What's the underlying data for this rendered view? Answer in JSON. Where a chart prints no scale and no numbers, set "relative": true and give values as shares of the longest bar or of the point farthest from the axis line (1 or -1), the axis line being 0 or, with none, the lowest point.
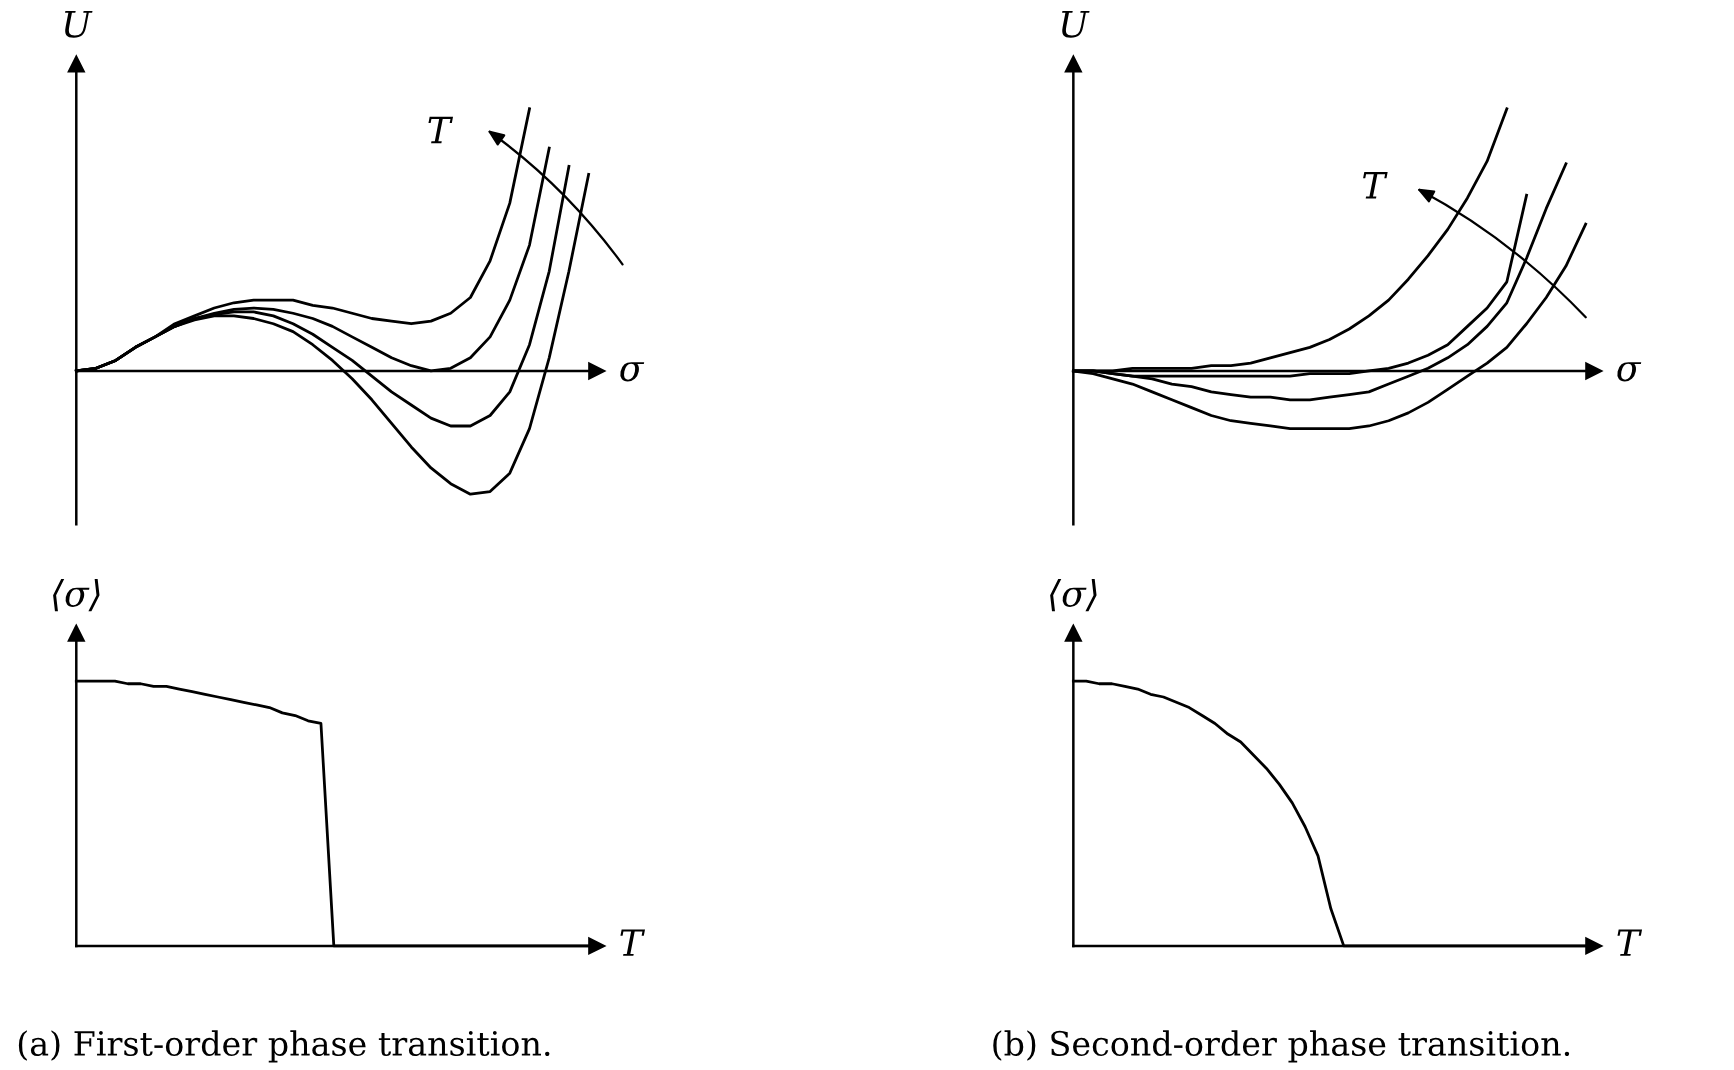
{
  "chart_data": [
    {
      "type": "line",
      "relative": true,
      "xlabel": "σ",
      "ylabel": "U",
      "annotations": [
        "T"
      ],
      "categories": [
        null,
        null,
        null,
        null,
        null,
        null,
        null,
        null,
        null,
        null,
        null,
        null,
        null,
        null,
        null,
        null,
        null,
        null,
        null,
        null,
        null,
        null,
        null,
        null,
        null,
        null,
        null
      ],
      "series": [
        {
          "color": "#000000",
          "values": [
            0,
            0.01,
            0.04,
            0.09,
            0.13,
            0.18,
            0.21,
            0.24,
            0.26,
            0.27,
            0.27,
            0.27,
            0.25,
            0.24,
            0.22,
            0.2,
            0.19,
            0.18,
            0.19,
            0.22,
            0.28,
            0.42,
            0.64,
            1.0,
            null,
            null,
            null
          ]
        },
        {
          "color": "#000000",
          "values": [
            0,
            0.01,
            0.04,
            0.09,
            0.13,
            0.17,
            0.2,
            0.22,
            0.235,
            0.24,
            0.235,
            0.22,
            0.2,
            0.17,
            0.13,
            0.09,
            0.05,
            0.02,
            0.0,
            0.01,
            0.05,
            0.13,
            0.27,
            0.48,
            0.85,
            null,
            null
          ]
        },
        {
          "color": "#000000",
          "values": [
            0,
            0.01,
            0.04,
            0.09,
            0.13,
            0.17,
            0.2,
            0.215,
            0.225,
            0.225,
            0.21,
            0.18,
            0.14,
            0.09,
            0.04,
            -0.02,
            -0.08,
            -0.13,
            -0.18,
            -0.21,
            -0.21,
            -0.17,
            -0.08,
            0.1,
            0.38,
            0.78,
            null
          ]
        },
        {
          "color": "#000000",
          "values": [
            0,
            0.01,
            0.04,
            0.09,
            0.13,
            0.17,
            0.195,
            0.21,
            0.21,
            0.2,
            0.18,
            0.15,
            0.1,
            0.04,
            -0.03,
            -0.11,
            -0.2,
            -0.29,
            -0.37,
            -0.43,
            -0.47,
            -0.46,
            -0.39,
            -0.22,
            0.05,
            0.38,
            0.75
          ]
        }
      ]
    },
    {
      "type": "line",
      "relative": true,
      "xlabel": "σ",
      "ylabel": "U",
      "annotations": [
        "T"
      ],
      "categories": [
        null,
        null,
        null,
        null,
        null,
        null,
        null,
        null,
        null,
        null,
        null,
        null,
        null,
        null,
        null,
        null,
        null,
        null,
        null,
        null,
        null,
        null,
        null,
        null,
        null,
        null,
        null
      ],
      "series": [
        {
          "color": "#000000",
          "values": [
            0,
            0,
            0,
            0.01,
            0.01,
            0.01,
            0.01,
            0.02,
            0.02,
            0.03,
            0.05,
            0.07,
            0.09,
            0.12,
            0.16,
            0.21,
            0.27,
            0.35,
            0.44,
            0.54,
            0.66,
            0.8,
            1.0,
            null,
            null,
            null,
            null
          ]
        },
        {
          "color": "#000000",
          "values": [
            0,
            0,
            -0.01,
            -0.02,
            -0.02,
            -0.02,
            -0.02,
            -0.02,
            -0.02,
            -0.02,
            -0.02,
            -0.02,
            -0.01,
            -0.01,
            -0.01,
            0,
            0.01,
            0.03,
            0.06,
            0.1,
            0.17,
            0.24,
            0.34,
            0.67,
            null,
            null,
            null
          ]
        },
        {
          "color": "#000000",
          "values": [
            0,
            0,
            -0.01,
            -0.02,
            -0.03,
            -0.05,
            -0.06,
            -0.08,
            -0.09,
            -0.1,
            -0.1,
            -0.11,
            -0.11,
            -0.1,
            -0.09,
            -0.08,
            -0.05,
            -0.02,
            0.01,
            0.05,
            0.1,
            0.17,
            0.26,
            0.43,
            0.62,
            0.79,
            null
          ]
        },
        {
          "color": "#000000",
          "values": [
            0,
            -0.01,
            -0.03,
            -0.05,
            -0.08,
            -0.11,
            -0.14,
            -0.17,
            -0.19,
            -0.2,
            -0.21,
            -0.22,
            -0.22,
            -0.22,
            -0.22,
            -0.21,
            -0.19,
            -0.16,
            -0.12,
            -0.07,
            -0.02,
            0.03,
            0.09,
            0.18,
            0.28,
            0.4,
            0.56
          ]
        }
      ]
    },
    {
      "type": "line",
      "relative": true,
      "xlabel": "T",
      "ylabel": "⟨σ⟩",
      "annotations": [
        "(a) First-order phase transition."
      ],
      "categories": [
        null,
        null,
        null,
        null,
        null,
        null,
        null,
        null,
        null,
        null,
        null,
        null,
        null,
        null,
        null,
        null,
        null,
        null,
        null,
        null,
        null,
        null,
        null,
        null,
        null,
        null,
        null,
        null,
        null,
        null,
        null,
        null,
        null,
        null,
        null,
        null,
        null,
        null,
        null,
        null,
        null
      ],
      "series": [
        {
          "color": "#000000",
          "values": [
            1.0,
            1.0,
            1.0,
            1.0,
            0.99,
            0.99,
            0.98,
            0.98,
            0.97,
            0.96,
            0.95,
            0.94,
            0.93,
            0.92,
            0.91,
            0.9,
            0.88,
            0.87,
            0.85,
            0.84,
            0,
            0,
            0,
            0,
            0,
            0,
            0,
            0,
            0,
            0,
            0,
            0,
            0,
            0,
            0,
            0,
            0,
            0,
            0,
            0,
            0
          ]
        }
      ]
    },
    {
      "type": "line",
      "relative": true,
      "xlabel": "T",
      "ylabel": "⟨σ⟩",
      "annotations": [
        "(b) Second-order phase transition."
      ],
      "categories": [
        null,
        null,
        null,
        null,
        null,
        null,
        null,
        null,
        null,
        null,
        null,
        null,
        null,
        null,
        null,
        null,
        null,
        null,
        null,
        null,
        null,
        null,
        null,
        null,
        null,
        null,
        null,
        null,
        null,
        null,
        null,
        null,
        null,
        null,
        null,
        null,
        null,
        null,
        null,
        null,
        null
      ],
      "series": [
        {
          "color": "#000000",
          "values": [
            1.0,
            1.0,
            0.99,
            0.99,
            0.98,
            0.97,
            0.95,
            0.94,
            0.92,
            0.9,
            0.87,
            0.84,
            0.8,
            0.77,
            0.72,
            0.67,
            0.61,
            0.54,
            0.45,
            0.34,
            0.14,
            0,
            0,
            0,
            0,
            0,
            0,
            0,
            0,
            0,
            0,
            0,
            0,
            0,
            0,
            0,
            0,
            0,
            0,
            0,
            0
          ]
        }
      ]
    }
  ]
}
